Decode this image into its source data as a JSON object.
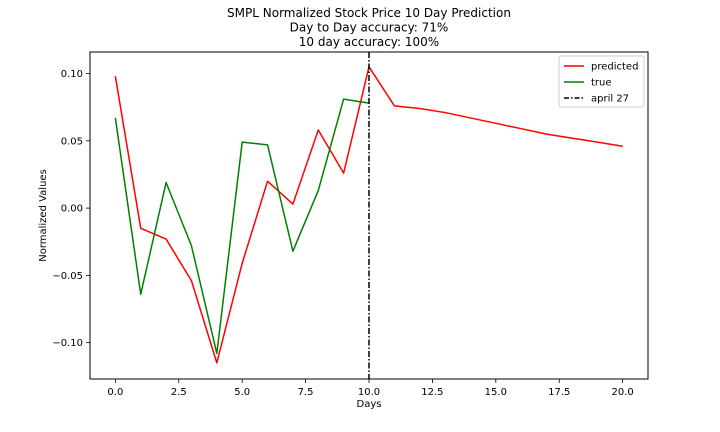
{
  "chart_data": {
    "type": "line",
    "title_lines": [
      "SMPL Normalized Stock Price 10 Day Prediction",
      "Day to Day accuracy: 71%",
      "10 day accuracy: 100%"
    ],
    "xlabel": "Days",
    "ylabel": "Normalized Values",
    "xlim": [
      -1.0,
      21.0
    ],
    "ylim": [
      -0.127,
      0.116
    ],
    "x_ticks": [
      0.0,
      2.5,
      5.0,
      7.5,
      10.0,
      12.5,
      15.0,
      17.5,
      20.0
    ],
    "x_tick_labels": [
      "0.0",
      "2.5",
      "5.0",
      "7.5",
      "10.0",
      "12.5",
      "15.0",
      "17.5",
      "20.0"
    ],
    "y_ticks": [
      0.1,
      0.05,
      0.0,
      -0.05,
      -0.1
    ],
    "y_tick_labels": [
      "0.10",
      "0.05",
      "0.00",
      "−0.05",
      "−0.10"
    ],
    "grid": false,
    "legend_position": "top-right",
    "series": [
      {
        "name": "predicted",
        "color": "#ff0000",
        "x": [
          0,
          1,
          2,
          3,
          4,
          5,
          6,
          7,
          8,
          9,
          10,
          11,
          12,
          13,
          14,
          15,
          16,
          17,
          18,
          19,
          20
        ],
        "y": [
          0.098,
          -0.015,
          -0.023,
          -0.054,
          -0.115,
          -0.041,
          0.02,
          0.003,
          0.058,
          0.026,
          0.105,
          0.076,
          0.074,
          0.071,
          0.067,
          0.063,
          0.059,
          0.055,
          0.052,
          0.049,
          0.046
        ]
      },
      {
        "name": "true",
        "color": "#008000",
        "x": [
          0,
          1,
          2,
          3,
          4,
          5,
          6,
          7,
          8,
          9,
          10
        ],
        "y": [
          0.067,
          -0.064,
          0.019,
          -0.028,
          -0.108,
          0.049,
          0.047,
          -0.032,
          0.013,
          0.081,
          0.078
        ]
      }
    ],
    "vline": {
      "name": "april 27",
      "x": 10,
      "color": "#000000"
    }
  }
}
